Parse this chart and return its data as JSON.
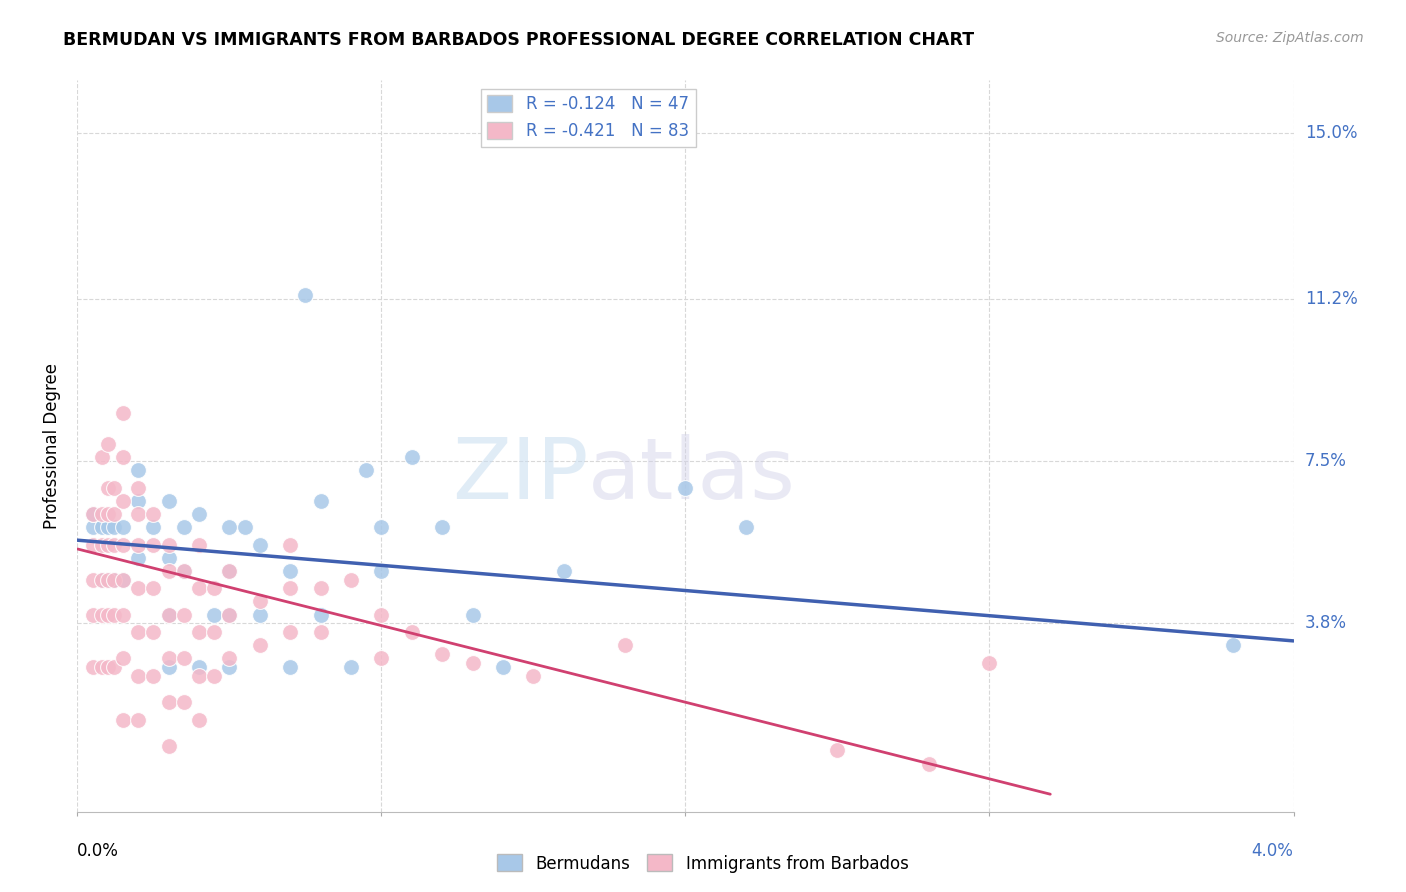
{
  "title": "BERMUDAN VS IMMIGRANTS FROM BARBADOS PROFESSIONAL DEGREE CORRELATION CHART",
  "source": "Source: ZipAtlas.com",
  "ylabel": "Professional Degree",
  "ytick_labels": [
    "15.0%",
    "11.2%",
    "7.5%",
    "3.8%"
  ],
  "ytick_values": [
    0.15,
    0.112,
    0.075,
    0.038
  ],
  "xlim": [
    0.0,
    0.04
  ],
  "ylim": [
    -0.005,
    0.162
  ],
  "legend_blue_text": "R = -0.124   N = 47",
  "legend_pink_text": "R = -0.421   N = 83",
  "legend_label_blue": "Bermudans",
  "legend_label_pink": "Immigrants from Barbados",
  "blue_color": "#a8c8e8",
  "pink_color": "#f4b8c8",
  "line_blue": "#4060b0",
  "line_pink": "#d04070",
  "watermark": "ZIPatlas",
  "blue_scatter": [
    [
      0.0005,
      0.06
    ],
    [
      0.0008,
      0.06
    ],
    [
      0.0008,
      0.048
    ],
    [
      0.001,
      0.06
    ],
    [
      0.001,
      0.048
    ],
    [
      0.0012,
      0.06
    ],
    [
      0.0012,
      0.048
    ],
    [
      0.0015,
      0.06
    ],
    [
      0.0015,
      0.048
    ],
    [
      0.0005,
      0.063
    ],
    [
      0.002,
      0.073
    ],
    [
      0.002,
      0.066
    ],
    [
      0.002,
      0.053
    ],
    [
      0.0025,
      0.06
    ],
    [
      0.003,
      0.066
    ],
    [
      0.003,
      0.053
    ],
    [
      0.003,
      0.04
    ],
    [
      0.003,
      0.028
    ],
    [
      0.0035,
      0.06
    ],
    [
      0.0035,
      0.05
    ],
    [
      0.004,
      0.063
    ],
    [
      0.004,
      0.028
    ],
    [
      0.0045,
      0.04
    ],
    [
      0.005,
      0.06
    ],
    [
      0.005,
      0.05
    ],
    [
      0.005,
      0.04
    ],
    [
      0.005,
      0.028
    ],
    [
      0.0055,
      0.06
    ],
    [
      0.006,
      0.056
    ],
    [
      0.006,
      0.04
    ],
    [
      0.007,
      0.05
    ],
    [
      0.007,
      0.028
    ],
    [
      0.0075,
      0.113
    ],
    [
      0.008,
      0.066
    ],
    [
      0.008,
      0.04
    ],
    [
      0.009,
      0.028
    ],
    [
      0.0095,
      0.073
    ],
    [
      0.01,
      0.06
    ],
    [
      0.01,
      0.05
    ],
    [
      0.011,
      0.076
    ],
    [
      0.012,
      0.06
    ],
    [
      0.013,
      0.04
    ],
    [
      0.014,
      0.028
    ],
    [
      0.016,
      0.05
    ],
    [
      0.02,
      0.069
    ],
    [
      0.022,
      0.06
    ],
    [
      0.038,
      0.033
    ]
  ],
  "pink_scatter": [
    [
      0.0005,
      0.063
    ],
    [
      0.0005,
      0.056
    ],
    [
      0.0005,
      0.048
    ],
    [
      0.0005,
      0.04
    ],
    [
      0.0005,
      0.028
    ],
    [
      0.0008,
      0.076
    ],
    [
      0.0008,
      0.063
    ],
    [
      0.0008,
      0.056
    ],
    [
      0.0008,
      0.048
    ],
    [
      0.0008,
      0.04
    ],
    [
      0.0008,
      0.028
    ],
    [
      0.001,
      0.079
    ],
    [
      0.001,
      0.069
    ],
    [
      0.001,
      0.063
    ],
    [
      0.001,
      0.056
    ],
    [
      0.001,
      0.048
    ],
    [
      0.001,
      0.04
    ],
    [
      0.001,
      0.028
    ],
    [
      0.0012,
      0.069
    ],
    [
      0.0012,
      0.063
    ],
    [
      0.0012,
      0.056
    ],
    [
      0.0012,
      0.048
    ],
    [
      0.0012,
      0.04
    ],
    [
      0.0012,
      0.028
    ],
    [
      0.0015,
      0.086
    ],
    [
      0.0015,
      0.076
    ],
    [
      0.0015,
      0.066
    ],
    [
      0.0015,
      0.056
    ],
    [
      0.0015,
      0.048
    ],
    [
      0.0015,
      0.04
    ],
    [
      0.0015,
      0.03
    ],
    [
      0.0015,
      0.016
    ],
    [
      0.002,
      0.069
    ],
    [
      0.002,
      0.063
    ],
    [
      0.002,
      0.056
    ],
    [
      0.002,
      0.046
    ],
    [
      0.002,
      0.036
    ],
    [
      0.002,
      0.026
    ],
    [
      0.002,
      0.016
    ],
    [
      0.0025,
      0.063
    ],
    [
      0.0025,
      0.056
    ],
    [
      0.0025,
      0.046
    ],
    [
      0.0025,
      0.036
    ],
    [
      0.0025,
      0.026
    ],
    [
      0.003,
      0.056
    ],
    [
      0.003,
      0.05
    ],
    [
      0.003,
      0.04
    ],
    [
      0.003,
      0.03
    ],
    [
      0.003,
      0.02
    ],
    [
      0.003,
      0.01
    ],
    [
      0.0035,
      0.05
    ],
    [
      0.0035,
      0.04
    ],
    [
      0.0035,
      0.03
    ],
    [
      0.0035,
      0.02
    ],
    [
      0.004,
      0.056
    ],
    [
      0.004,
      0.046
    ],
    [
      0.004,
      0.036
    ],
    [
      0.004,
      0.026
    ],
    [
      0.004,
      0.016
    ],
    [
      0.0045,
      0.046
    ],
    [
      0.0045,
      0.036
    ],
    [
      0.0045,
      0.026
    ],
    [
      0.005,
      0.05
    ],
    [
      0.005,
      0.04
    ],
    [
      0.005,
      0.03
    ],
    [
      0.006,
      0.043
    ],
    [
      0.006,
      0.033
    ],
    [
      0.007,
      0.056
    ],
    [
      0.007,
      0.046
    ],
    [
      0.007,
      0.036
    ],
    [
      0.008,
      0.046
    ],
    [
      0.008,
      0.036
    ],
    [
      0.009,
      0.048
    ],
    [
      0.01,
      0.04
    ],
    [
      0.01,
      0.03
    ],
    [
      0.011,
      0.036
    ],
    [
      0.012,
      0.031
    ],
    [
      0.013,
      0.029
    ],
    [
      0.015,
      0.026
    ],
    [
      0.018,
      0.033
    ],
    [
      0.025,
      0.009
    ],
    [
      0.028,
      0.006
    ],
    [
      0.03,
      0.029
    ]
  ],
  "blue_line_x": [
    0.0,
    0.04
  ],
  "blue_line_y": [
    0.057,
    0.034
  ],
  "pink_line_x": [
    0.0,
    0.032
  ],
  "pink_line_y": [
    0.055,
    -0.001
  ],
  "background_color": "#ffffff",
  "grid_color": "#d8d8d8"
}
